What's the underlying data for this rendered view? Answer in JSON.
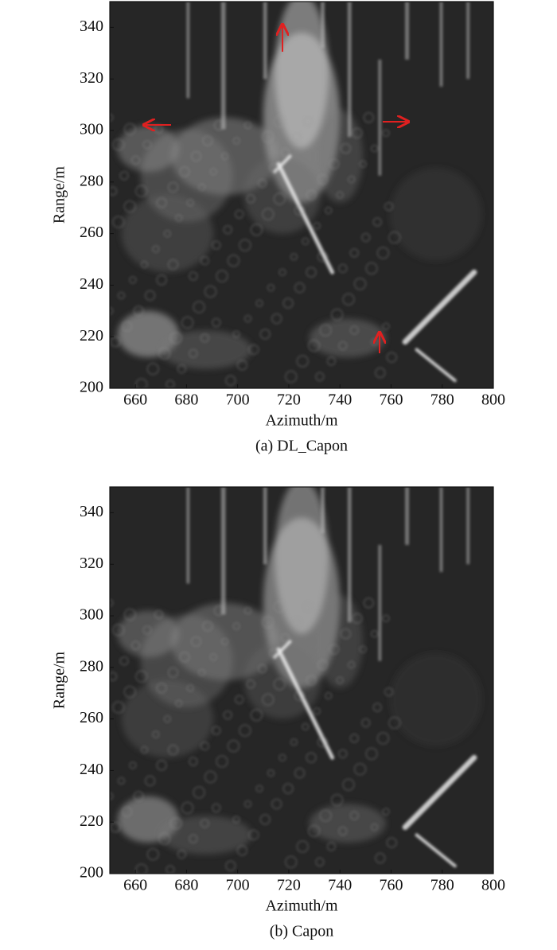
{
  "chart_data": [
    {
      "type": "heatmap",
      "xlabel": "Azimuth/m",
      "ylabel": "Range/m",
      "caption": "(a) DL_Capon",
      "xlim": [
        650,
        800
      ],
      "ylim": [
        200,
        350
      ],
      "xticks": [
        660,
        680,
        700,
        720,
        740,
        760,
        780,
        800
      ],
      "yticks": [
        200,
        220,
        240,
        260,
        280,
        300,
        320,
        340
      ]
    },
    {
      "type": "heatmap",
      "xlabel": "Azimuth/m",
      "ylabel": "Range/m",
      "caption": "(b) Capon",
      "xlim": [
        650,
        800
      ],
      "ylim": [
        200,
        350
      ],
      "xticks": [
        660,
        680,
        700,
        720,
        740,
        760,
        780,
        800
      ],
      "yticks": [
        200,
        220,
        240,
        260,
        280,
        300,
        320,
        340
      ]
    }
  ]
}
